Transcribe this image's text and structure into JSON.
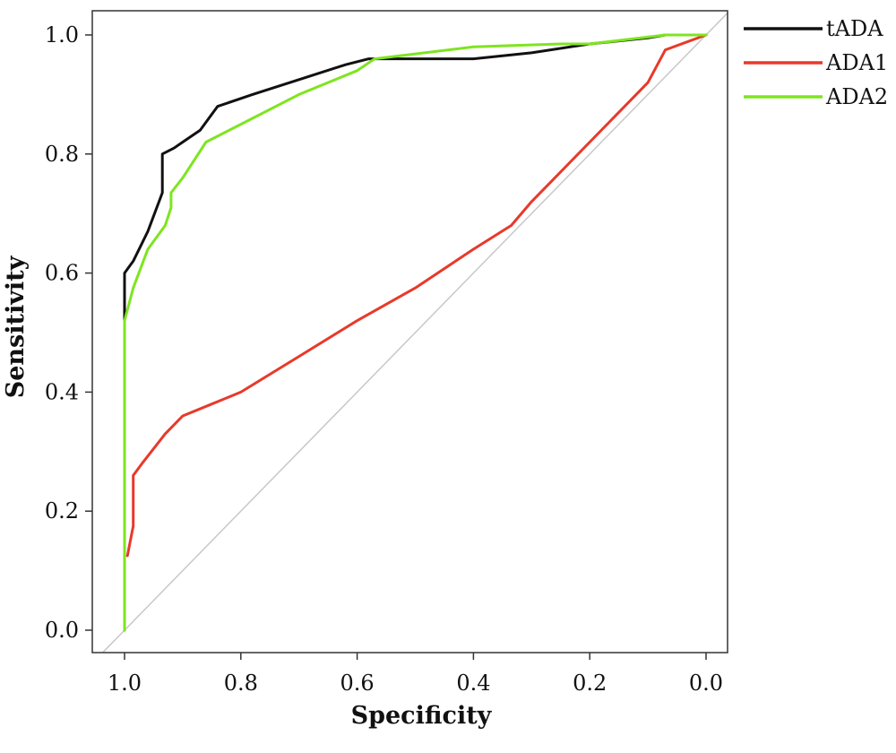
{
  "chart_data": {
    "type": "line",
    "title": "",
    "xlabel": "Specificity",
    "ylabel": "Sensitivity",
    "xlim": [
      1.0,
      0.0
    ],
    "ylim": [
      0.0,
      1.0
    ],
    "x_reversed": true,
    "x_ticks": [
      "1.0",
      "0.8",
      "0.6",
      "0.4",
      "0.2",
      "0.0"
    ],
    "y_ticks": [
      "0.0",
      "0.2",
      "0.4",
      "0.6",
      "0.8",
      "1.0"
    ],
    "grid": false,
    "legend_position": "top-right, outside plot",
    "reference_line": {
      "from": [
        1.0,
        0.0
      ],
      "to": [
        0.0,
        1.0
      ],
      "color": "#c8c8c8"
    },
    "series": [
      {
        "name": "tADA",
        "color": "#111111",
        "points": [
          [
            1.0,
            0.0
          ],
          [
            1.0,
            0.52
          ],
          [
            1.0,
            0.6
          ],
          [
            0.985,
            0.62
          ],
          [
            0.96,
            0.67
          ],
          [
            0.935,
            0.735
          ],
          [
            0.935,
            0.8
          ],
          [
            0.915,
            0.81
          ],
          [
            0.9,
            0.82
          ],
          [
            0.87,
            0.84
          ],
          [
            0.84,
            0.88
          ],
          [
            0.78,
            0.9
          ],
          [
            0.7,
            0.925
          ],
          [
            0.62,
            0.95
          ],
          [
            0.58,
            0.96
          ],
          [
            0.5,
            0.96
          ],
          [
            0.4,
            0.96
          ],
          [
            0.3,
            0.97
          ],
          [
            0.2,
            0.985
          ],
          [
            0.1,
            0.995
          ],
          [
            0.07,
            1.0
          ],
          [
            0.0,
            1.0
          ]
        ]
      },
      {
        "name": "ADA1",
        "color": "#e8392a",
        "points": [
          [
            0.995,
            0.125
          ],
          [
            0.985,
            0.175
          ],
          [
            0.985,
            0.26
          ],
          [
            0.97,
            0.28
          ],
          [
            0.93,
            0.33
          ],
          [
            0.9,
            0.36
          ],
          [
            0.85,
            0.38
          ],
          [
            0.8,
            0.4
          ],
          [
            0.7,
            0.46
          ],
          [
            0.6,
            0.52
          ],
          [
            0.5,
            0.575
          ],
          [
            0.4,
            0.64
          ],
          [
            0.335,
            0.68
          ],
          [
            0.3,
            0.72
          ],
          [
            0.2,
            0.82
          ],
          [
            0.1,
            0.92
          ],
          [
            0.07,
            0.975
          ],
          [
            0.0,
            1.0
          ]
        ]
      },
      {
        "name": "ADA2",
        "color": "#7ee51f",
        "points": [
          [
            1.0,
            0.0
          ],
          [
            1.0,
            0.52
          ],
          [
            0.985,
            0.575
          ],
          [
            0.96,
            0.64
          ],
          [
            0.93,
            0.68
          ],
          [
            0.92,
            0.71
          ],
          [
            0.92,
            0.735
          ],
          [
            0.9,
            0.76
          ],
          [
            0.86,
            0.82
          ],
          [
            0.78,
            0.86
          ],
          [
            0.7,
            0.9
          ],
          [
            0.6,
            0.94
          ],
          [
            0.57,
            0.96
          ],
          [
            0.4,
            0.98
          ],
          [
            0.25,
            0.985
          ],
          [
            0.2,
            0.985
          ],
          [
            0.07,
            1.0
          ],
          [
            0.0,
            1.0
          ]
        ]
      }
    ]
  }
}
